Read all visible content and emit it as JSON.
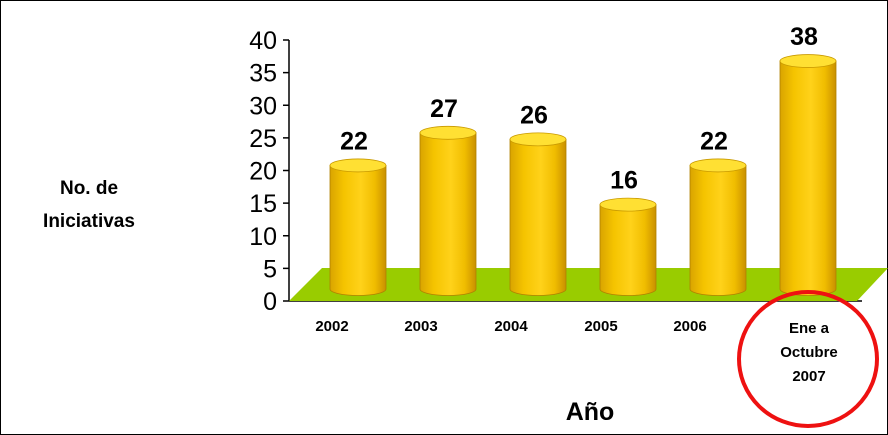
{
  "chart_data": {
    "type": "bar",
    "categories": [
      [
        "2002"
      ],
      [
        "2003"
      ],
      [
        "2004"
      ],
      [
        "2005"
      ],
      [
        "2006"
      ],
      [
        "Ene a",
        "Octubre",
        "2007"
      ]
    ],
    "values": [
      22,
      27,
      26,
      16,
      22,
      38
    ],
    "data_labels": [
      "22",
      "27",
      "26",
      "16",
      "22",
      "38"
    ],
    "ylabel": [
      "No. de",
      "Iniciativas"
    ],
    "xlabel": "Año",
    "ylim": [
      0,
      40
    ],
    "yticks": [
      "0",
      "5",
      "10",
      "15",
      "20",
      "25",
      "30",
      "35",
      "40"
    ],
    "grid": false,
    "legend": "none",
    "highlighted_category_index": 5,
    "colors": {
      "bar_fill": "#f5c400",
      "bar_top": "#ffe033",
      "bar_shadow": "#c99a00",
      "floor": "#99cc00",
      "highlight_circle": "#ee1111"
    }
  }
}
